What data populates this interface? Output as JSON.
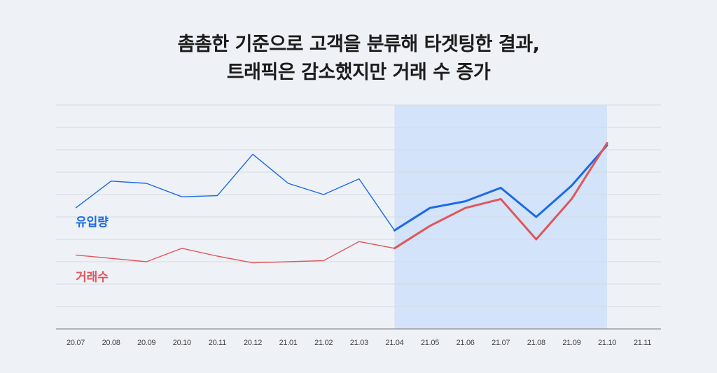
{
  "title": {
    "line1": "촘촘한 기준으로 고객을 분류해 타겟팅한 결과,",
    "line2": "트래픽은 감소했지만 거래 수 증가"
  },
  "chart_data": {
    "type": "line",
    "title": "촘촘한 기준으로 고객을 분류해 타겟팅한 결과, 트래픽은 감소했지만 거래 수 증가",
    "categories": [
      "20.07",
      "20.08",
      "20.09",
      "20.10",
      "20.11",
      "20.12",
      "21.01",
      "21.02",
      "21.03",
      "21.04",
      "21.05",
      "21.06",
      "21.07",
      "21.08",
      "21.09",
      "21.10",
      "21.11"
    ],
    "ylim": [
      0,
      10
    ],
    "grid": true,
    "highlight_range": [
      "21.04",
      "21.10"
    ],
    "series": [
      {
        "name": "유입량",
        "color": "#1a6ae6",
        "values": [
          5.4,
          6.6,
          6.5,
          5.9,
          5.95,
          7.8,
          6.5,
          6.0,
          6.7,
          4.4,
          5.4,
          5.7,
          6.3,
          5.0,
          6.4,
          8.2,
          null
        ]
      },
      {
        "name": "거래수",
        "color": "#e0565a",
        "values": [
          3.3,
          3.15,
          3.0,
          3.6,
          3.25,
          2.95,
          3.0,
          3.05,
          3.9,
          3.6,
          4.6,
          5.4,
          5.8,
          4.0,
          5.8,
          8.3,
          null
        ]
      }
    ]
  }
}
